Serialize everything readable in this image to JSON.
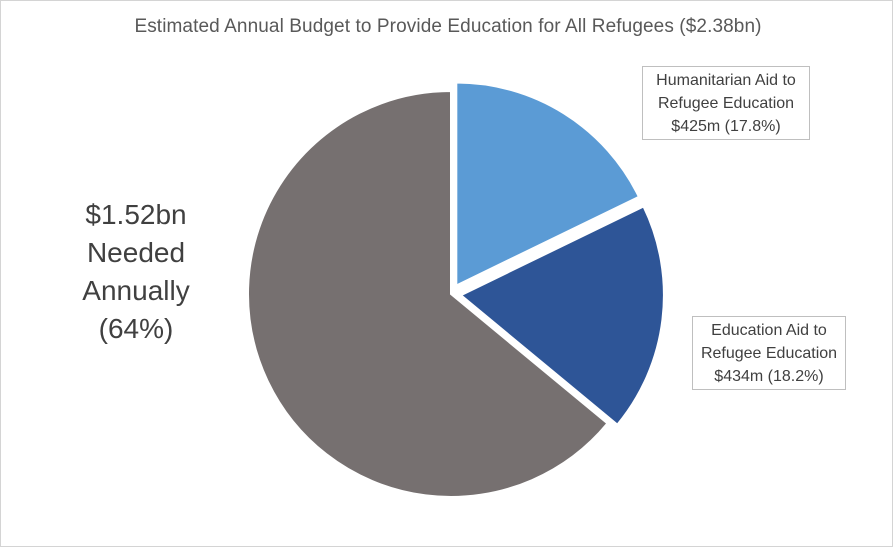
{
  "chart_data": {
    "type": "pie",
    "title": "Estimated Annual Budget to Provide Education for All Refugees ($2.38bn)",
    "slices": [
      {
        "name": "Humanitarian Aid to Refugee Education",
        "value_label": "$425m",
        "value_millions": 425,
        "percent": 17.8,
        "label_lines": [
          "Humanitarian Aid to",
          "Refugee Education",
          "$425m (17.8%)"
        ],
        "color": "#5b9bd5",
        "exploded": true
      },
      {
        "name": "Education Aid to Refugee Education",
        "value_label": "$434m",
        "value_millions": 434,
        "percent": 18.2,
        "label_lines": [
          "Education Aid to",
          "Refugee Education",
          "$434m (18.2%)"
        ],
        "color": "#2e5597",
        "exploded": true
      },
      {
        "name": "Needed Annually",
        "value_label": "$1.52bn",
        "value_millions": 1520,
        "percent": 64,
        "label_lines": [
          "$1.52bn",
          "Needed",
          "Annually",
          "(64%)"
        ],
        "color": "#767070",
        "exploded": false
      }
    ],
    "legend": "none"
  }
}
